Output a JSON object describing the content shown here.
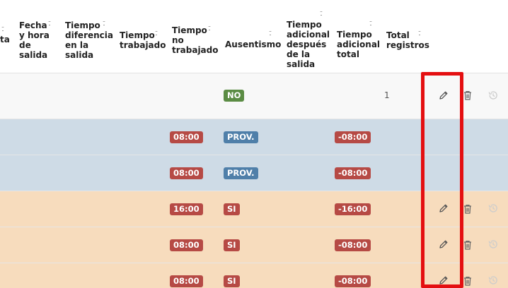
{
  "columns": [
    {
      "id": "ta",
      "lines": [
        "ta"
      ]
    },
    {
      "id": "fecha_salida",
      "lines": [
        "Fecha",
        "y hora",
        "de",
        "salida"
      ]
    },
    {
      "id": "tiempo_diferencia",
      "lines": [
        "Tiempo",
        "diferencia",
        "en la",
        "salida"
      ]
    },
    {
      "id": "tiempo_trabajado",
      "lines": [
        "Tiempo",
        "trabajado"
      ]
    },
    {
      "id": "tiempo_no_trabajado",
      "lines": [
        "Tiempo",
        "no",
        "trabajado"
      ]
    },
    {
      "id": "ausentismo",
      "lines": [
        "Ausentismo"
      ]
    },
    {
      "id": "tiempo_adicional_despues",
      "lines": [
        "Tiempo",
        "adicional",
        "después",
        "de la",
        "salida"
      ]
    },
    {
      "id": "tiempo_adicional_total",
      "lines": [
        "Tiempo",
        "adicional",
        "total"
      ]
    },
    {
      "id": "total_registros",
      "lines": [
        "Total",
        "registros"
      ]
    }
  ],
  "rows": [
    {
      "status": "normal",
      "no_trabajado": "",
      "ausentismo": "NO",
      "ausentismo_type": "green",
      "adicional_total": "",
      "total_registros": "1",
      "actions": true
    },
    {
      "status": "provisional",
      "no_trabajado": "08:00",
      "ausentismo": "PROV.",
      "ausentismo_type": "blue",
      "adicional_total": "-08:00",
      "total_registros": "",
      "actions": false
    },
    {
      "status": "provisional",
      "no_trabajado": "08:00",
      "ausentismo": "PROV.",
      "ausentismo_type": "blue",
      "adicional_total": "-08:00",
      "total_registros": "",
      "actions": false
    },
    {
      "status": "absent",
      "no_trabajado": "16:00",
      "ausentismo": "SI",
      "ausentismo_type": "red",
      "adicional_total": "-16:00",
      "total_registros": "",
      "actions": true
    },
    {
      "status": "absent",
      "no_trabajado": "08:00",
      "ausentismo": "SI",
      "ausentismo_type": "red",
      "adicional_total": "-08:00",
      "total_registros": "",
      "actions": true
    },
    {
      "status": "absent",
      "no_trabajado": "08:00",
      "ausentismo": "SI",
      "ausentismo_type": "red",
      "adicional_total": "-08:00",
      "total_registros": "",
      "actions": true
    }
  ],
  "action_icons": [
    "pencil-icon",
    "trash-icon",
    "history-icon"
  ],
  "colors": {
    "row_normal": "#f8f8f8",
    "row_provisional": "#cedbe6",
    "row_absent": "#f7dcbd",
    "badge_red": "#b64a45",
    "badge_green": "#5b8c44",
    "badge_blue": "#4f7fa9",
    "highlight": "#e40f11"
  }
}
